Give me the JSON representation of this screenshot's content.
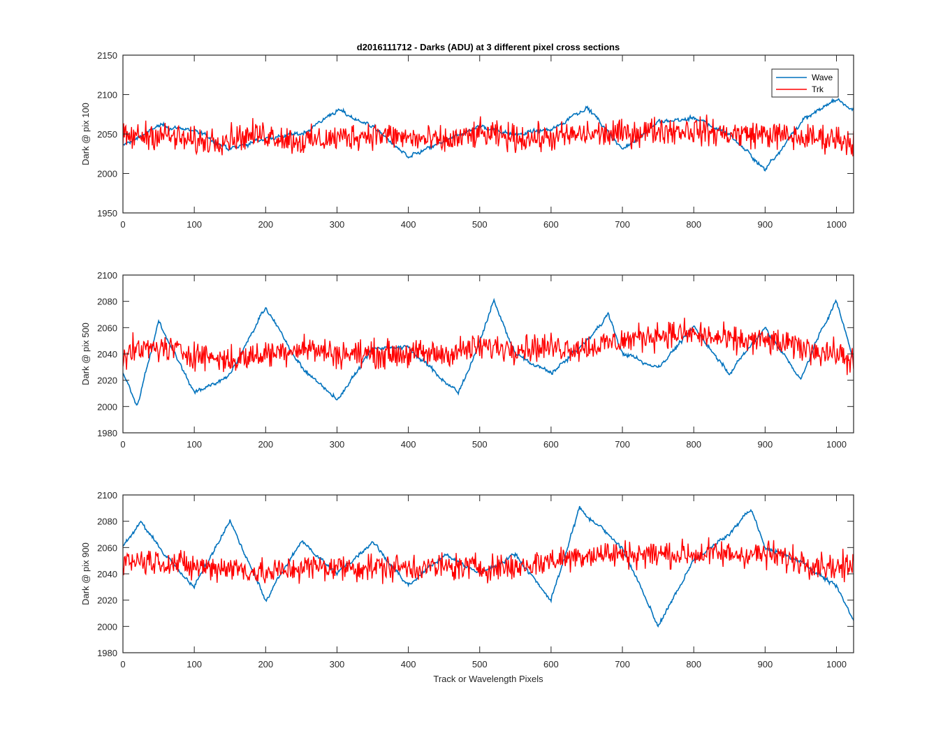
{
  "figure": {
    "title": "d2016111712 - Darks (ADU) at 3 different pixel cross sections",
    "xlabel": "Track or Wavelength Pixels"
  },
  "legend": {
    "placement": "top-right",
    "entries": [
      {
        "label": "Wave",
        "color": "#0072BD"
      },
      {
        "label": "Trk",
        "color": "#FF0000"
      }
    ]
  },
  "chart_data": [
    {
      "type": "line",
      "title": "d2016111712 - Darks (ADU) at 3 different pixel cross sections",
      "xlabel": "",
      "ylabel": "Dark @ pix 100",
      "xlim": [
        0,
        1024
      ],
      "ylim": [
        1950,
        2150
      ],
      "xticks": [
        0,
        100,
        200,
        300,
        400,
        500,
        600,
        700,
        800,
        900,
        1000
      ],
      "yticks": [
        1950,
        2000,
        2050,
        2100,
        2150
      ],
      "grid": false,
      "legend": "top-right",
      "series": [
        {
          "name": "Wave",
          "color": "#0072BD",
          "x": [
            0,
            50,
            100,
            150,
            200,
            250,
            300,
            350,
            400,
            450,
            500,
            550,
            600,
            650,
            700,
            750,
            800,
            850,
            900,
            950,
            1000,
            1024
          ],
          "values": [
            2035,
            2060,
            2055,
            2030,
            2045,
            2050,
            2080,
            2060,
            2020,
            2040,
            2060,
            2050,
            2055,
            2085,
            2030,
            2065,
            2070,
            2050,
            2005,
            2065,
            2095,
            2080
          ]
        },
        {
          "name": "Trk",
          "color": "#FF0000",
          "x": [
            0,
            50,
            100,
            150,
            200,
            250,
            300,
            350,
            400,
            450,
            500,
            550,
            600,
            650,
            700,
            750,
            800,
            850,
            900,
            950,
            1000,
            1024
          ],
          "values": [
            2045,
            2050,
            2040,
            2045,
            2050,
            2040,
            2045,
            2050,
            2045,
            2040,
            2050,
            2045,
            2045,
            2050,
            2050,
            2055,
            2055,
            2050,
            2050,
            2045,
            2045,
            2040
          ]
        }
      ]
    },
    {
      "type": "line",
      "title": "",
      "xlabel": "",
      "ylabel": "Dark @ pix 500",
      "xlim": [
        0,
        1024
      ],
      "ylim": [
        1980,
        2100
      ],
      "xticks": [
        0,
        100,
        200,
        300,
        400,
        500,
        600,
        700,
        800,
        900,
        1000
      ],
      "yticks": [
        1980,
        2000,
        2020,
        2040,
        2060,
        2080,
        2100
      ],
      "grid": false,
      "series": [
        {
          "name": "Wave",
          "color": "#0072BD",
          "x": [
            0,
            20,
            50,
            100,
            150,
            200,
            250,
            300,
            350,
            400,
            450,
            470,
            500,
            520,
            550,
            600,
            650,
            680,
            700,
            750,
            800,
            850,
            900,
            950,
            980,
            1000,
            1024
          ],
          "values": [
            2025,
            2000,
            2065,
            2010,
            2025,
            2075,
            2030,
            2005,
            2045,
            2045,
            2020,
            2010,
            2050,
            2080,
            2040,
            2025,
            2050,
            2070,
            2040,
            2030,
            2060,
            2025,
            2060,
            2020,
            2060,
            2080,
            2035
          ]
        },
        {
          "name": "Trk",
          "color": "#FF0000",
          "x": [
            0,
            50,
            100,
            150,
            200,
            250,
            300,
            350,
            400,
            450,
            500,
            550,
            600,
            650,
            700,
            750,
            800,
            850,
            900,
            950,
            1000,
            1024
          ],
          "values": [
            2040,
            2045,
            2040,
            2035,
            2040,
            2045,
            2040,
            2040,
            2040,
            2040,
            2045,
            2045,
            2045,
            2045,
            2050,
            2055,
            2055,
            2050,
            2050,
            2045,
            2040,
            2035
          ]
        }
      ]
    },
    {
      "type": "line",
      "title": "",
      "xlabel": "Track or Wavelength Pixels",
      "ylabel": "Dark @ pix 900",
      "xlim": [
        0,
        1024
      ],
      "ylim": [
        1980,
        2100
      ],
      "xticks": [
        0,
        100,
        200,
        300,
        400,
        500,
        600,
        700,
        800,
        900,
        1000
      ],
      "yticks": [
        1980,
        2000,
        2020,
        2040,
        2060,
        2080,
        2100
      ],
      "grid": false,
      "series": [
        {
          "name": "Wave",
          "color": "#0072BD",
          "x": [
            0,
            25,
            50,
            100,
            150,
            200,
            250,
            300,
            350,
            400,
            450,
            500,
            550,
            600,
            640,
            700,
            750,
            800,
            850,
            880,
            900,
            950,
            1000,
            1024
          ],
          "values": [
            2060,
            2080,
            2060,
            2030,
            2080,
            2020,
            2065,
            2040,
            2065,
            2030,
            2055,
            2040,
            2055,
            2020,
            2090,
            2060,
            2000,
            2050,
            2070,
            2090,
            2060,
            2050,
            2030,
            2005
          ]
        },
        {
          "name": "Trk",
          "color": "#FF0000",
          "x": [
            0,
            50,
            100,
            150,
            200,
            250,
            300,
            350,
            400,
            450,
            500,
            550,
            600,
            650,
            700,
            750,
            800,
            850,
            900,
            950,
            1000,
            1024
          ],
          "values": [
            2050,
            2050,
            2045,
            2045,
            2040,
            2045,
            2045,
            2045,
            2045,
            2045,
            2045,
            2045,
            2050,
            2055,
            2055,
            2055,
            2055,
            2055,
            2055,
            2050,
            2045,
            2045
          ]
        }
      ]
    }
  ]
}
